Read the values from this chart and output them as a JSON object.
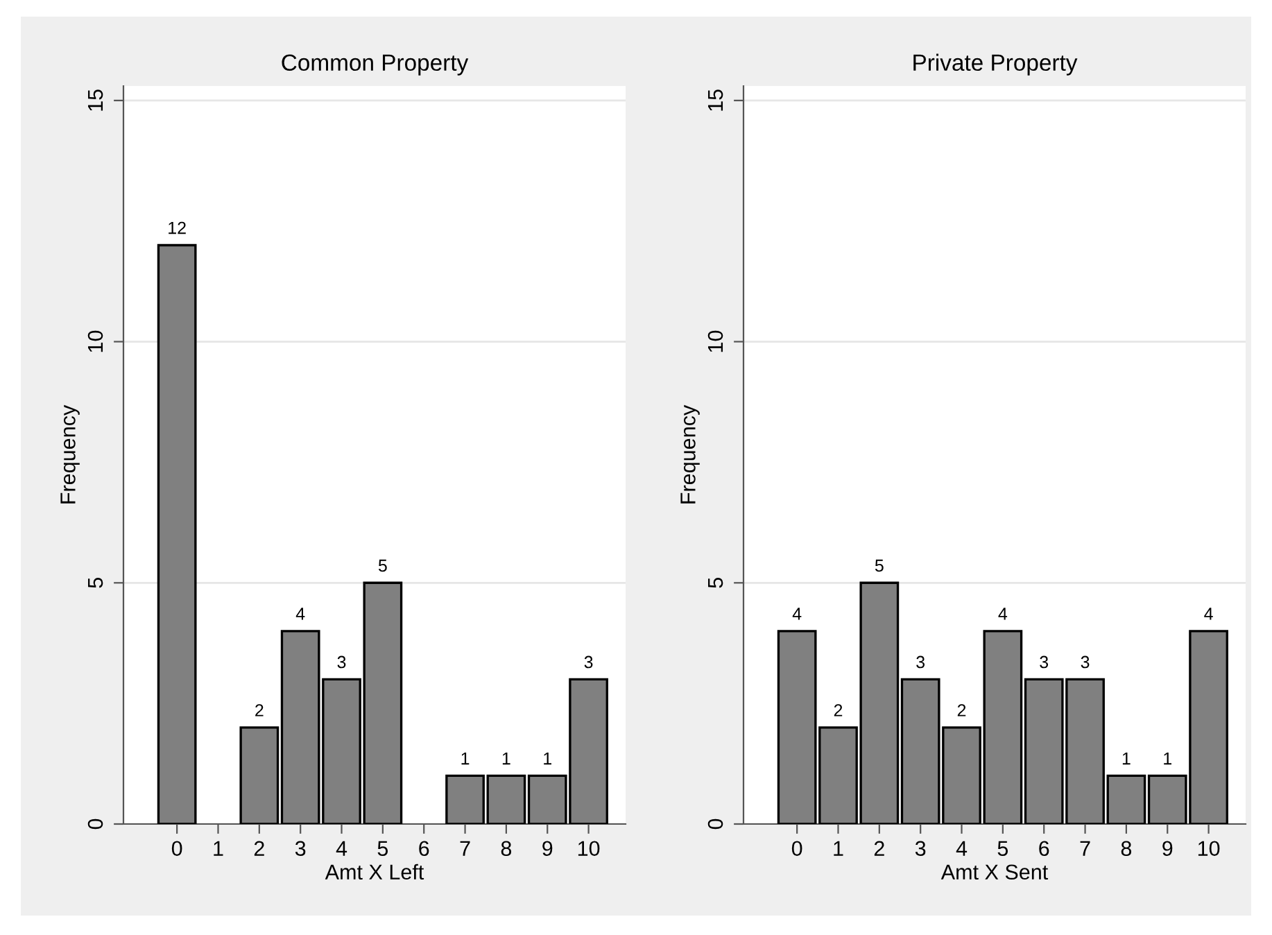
{
  "chart_data": [
    {
      "type": "bar",
      "title": "Common Property",
      "xlabel": "Amt X Left",
      "ylabel": "Frequency",
      "x": [
        0,
        1,
        2,
        3,
        4,
        5,
        6,
        7,
        8,
        9,
        10
      ],
      "values": [
        12,
        0,
        2,
        4,
        3,
        5,
        0,
        1,
        1,
        1,
        3
      ],
      "value_labels": [
        "12",
        null,
        "2",
        "4",
        "3",
        "5",
        null,
        "1",
        "1",
        "1",
        "3"
      ],
      "color": "#808080",
      "xlim": [
        -1.3,
        10.9
      ],
      "xticks": [
        0,
        1,
        2,
        3,
        4,
        5,
        6,
        7,
        8,
        9,
        10
      ],
      "ylim": [
        0,
        15.3
      ],
      "yticks": [
        0,
        5,
        10,
        15
      ],
      "grid": "y",
      "legend": false
    },
    {
      "type": "bar",
      "title": "Private Property",
      "xlabel": "Amt X Sent",
      "ylabel": "Frequency",
      "x": [
        0,
        1,
        2,
        3,
        4,
        5,
        6,
        7,
        8,
        9,
        10
      ],
      "values": [
        4,
        2,
        5,
        3,
        2,
        4,
        3,
        3,
        1,
        1,
        4
      ],
      "value_labels": [
        "4",
        "2",
        "5",
        "3",
        "2",
        "4",
        "3",
        "3",
        "1",
        "1",
        "4"
      ],
      "color": "#808080",
      "xlim": [
        -1.3,
        10.9
      ],
      "xticks": [
        0,
        1,
        2,
        3,
        4,
        5,
        6,
        7,
        8,
        9,
        10
      ],
      "ylim": [
        0,
        15.3
      ],
      "yticks": [
        0,
        5,
        10,
        15
      ],
      "grid": "y",
      "legend": false
    }
  ]
}
